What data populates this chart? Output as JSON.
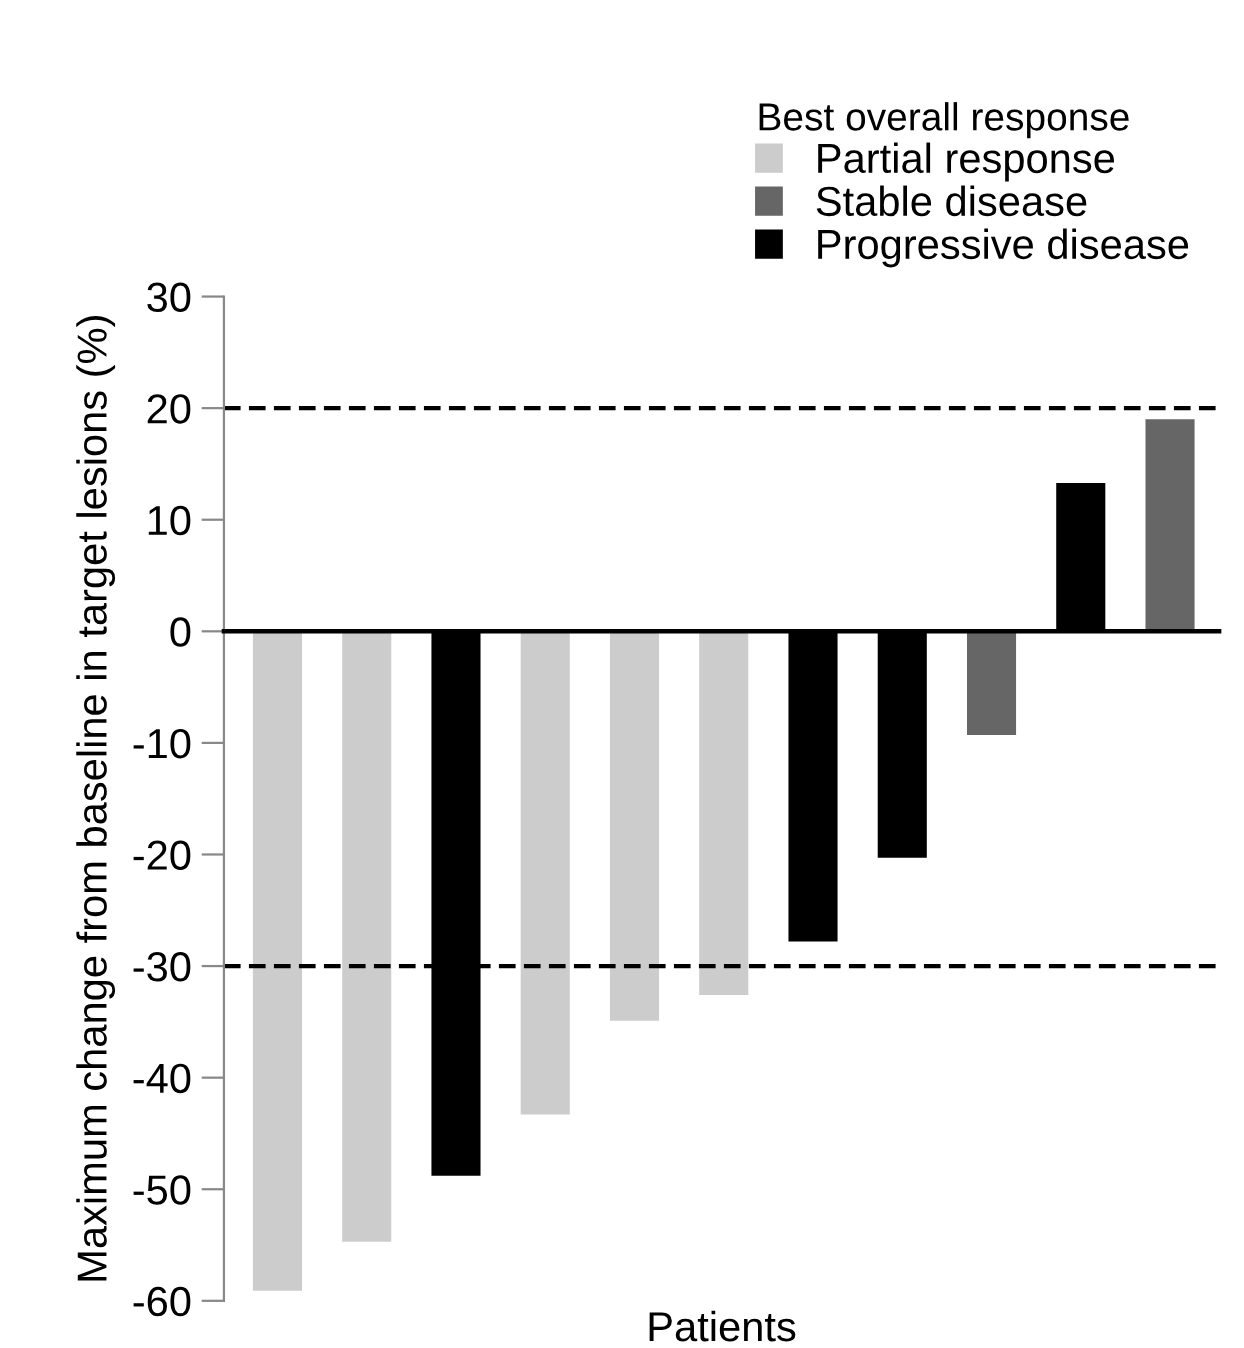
{
  "chart_data": {
    "type": "bar",
    "xlabel": "Patients",
    "ylabel": "Maximum change from baseline in target lesions (%)",
    "legend_title": "Best overall response",
    "categories": [
      null,
      null,
      null,
      null,
      null,
      null,
      null,
      null,
      null,
      null,
      null
    ],
    "series": [
      {
        "name": "Partial response",
        "color": "#cccccc",
        "values": [
          -59.1,
          -54.7,
          null,
          -43.3,
          -34.9,
          -32.6,
          null,
          null,
          null,
          null,
          null
        ]
      },
      {
        "name": "Stable disease",
        "color": "#666666",
        "values": [
          null,
          null,
          null,
          null,
          null,
          null,
          null,
          null,
          -9.3,
          null,
          19.0
        ]
      },
      {
        "name": "Progressive disease",
        "color": "#000000",
        "values": [
          null,
          null,
          -48.8,
          null,
          null,
          null,
          -27.8,
          -20.3,
          null,
          13.3,
          null
        ]
      }
    ],
    "ylim": [
      -60,
      30
    ],
    "yticks": [
      -60,
      -50,
      -40,
      -30,
      -20,
      -10,
      0,
      10,
      20,
      30
    ],
    "ref_lines": [
      {
        "axis": "y",
        "value": 20,
        "line_style": "dashed",
        "color": "#000000"
      },
      {
        "axis": "y",
        "value": -30,
        "line_style": "dashed",
        "color": "#000000"
      }
    ],
    "tick_labels": "y",
    "grid": false,
    "legend": "top right"
  }
}
